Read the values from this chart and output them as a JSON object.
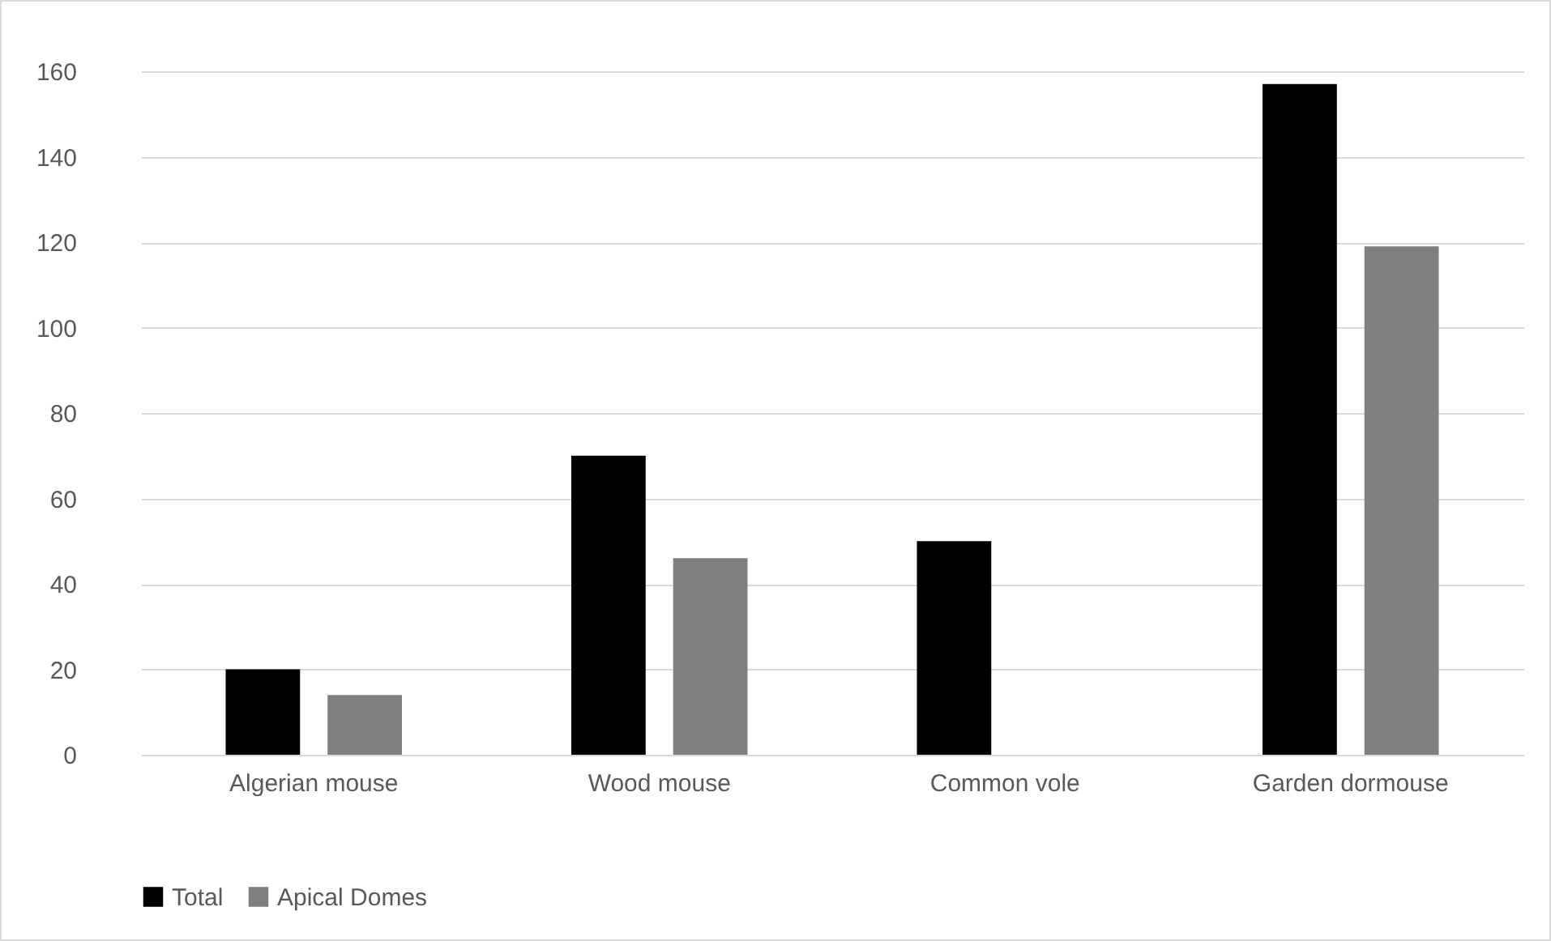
{
  "chart_data": {
    "type": "bar",
    "categories": [
      "Algerian mouse",
      "Wood mouse",
      "Common vole",
      "Garden dormouse"
    ],
    "series": [
      {
        "name": "Total",
        "color": "#000000",
        "values": [
          20,
          70,
          50,
          157
        ]
      },
      {
        "name": "Apical Domes",
        "color": "#7f7f7f",
        "values": [
          14,
          46,
          0,
          119
        ]
      }
    ],
    "ylim": [
      0,
      160
    ],
    "yticks": [
      0,
      20,
      40,
      60,
      80,
      100,
      120,
      140,
      160
    ],
    "grid": "y",
    "legend": "bottom"
  }
}
